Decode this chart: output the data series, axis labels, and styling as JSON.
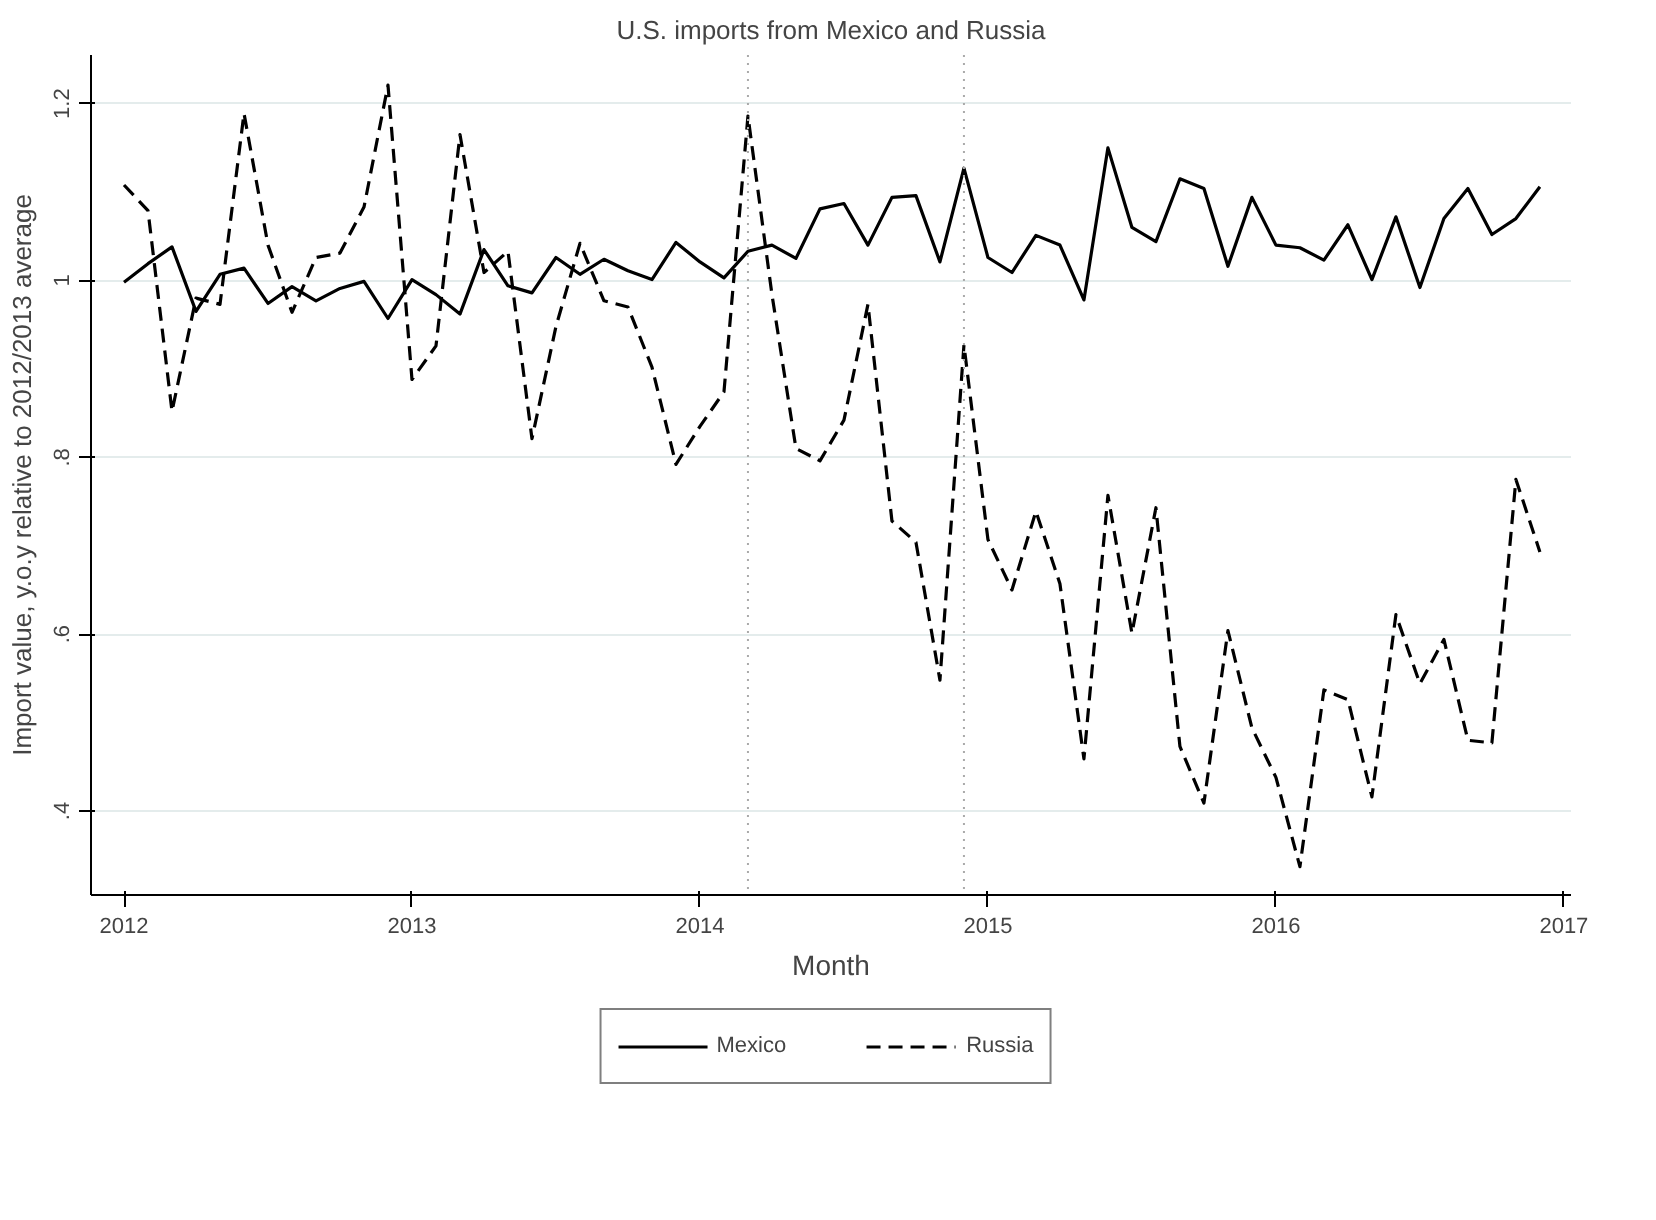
{
  "chart_data": {
    "type": "line",
    "title": "U.S. imports from Mexico and Russia",
    "xlabel": "Month",
    "ylabel": "Import value, y.o.y relative to 2012/2013 average",
    "x": [
      "2012-01",
      "2012-02",
      "2012-03",
      "2012-04",
      "2012-05",
      "2012-06",
      "2012-07",
      "2012-08",
      "2012-09",
      "2012-10",
      "2012-11",
      "2012-12",
      "2013-01",
      "2013-02",
      "2013-03",
      "2013-04",
      "2013-05",
      "2013-06",
      "2013-07",
      "2013-08",
      "2013-09",
      "2013-10",
      "2013-11",
      "2013-12",
      "2014-01",
      "2014-02",
      "2014-03",
      "2014-04",
      "2014-05",
      "2014-06",
      "2014-07",
      "2014-08",
      "2014-09",
      "2014-10",
      "2014-11",
      "2014-12",
      "2015-01",
      "2015-02",
      "2015-03",
      "2015-04",
      "2015-05",
      "2015-06",
      "2015-07",
      "2015-08",
      "2015-09",
      "2015-10",
      "2015-11",
      "2015-12",
      "2016-01",
      "2016-02",
      "2016-03",
      "2016-04",
      "2016-05",
      "2016-06",
      "2016-07",
      "2016-08",
      "2016-09",
      "2016-10",
      "2016-11",
      "2016-12"
    ],
    "series": [
      {
        "name": "Mexico",
        "color": "#000000",
        "line_style": "solid",
        "values": [
          0.998,
          1.019,
          1.038,
          0.965,
          1.007,
          1.014,
          0.974,
          0.993,
          0.977,
          0.991,
          0.999,
          0.957,
          1.001,
          0.984,
          0.962,
          1.035,
          0.994,
          0.986,
          1.026,
          1.007,
          1.024,
          1.011,
          1.001,
          1.043,
          1.021,
          1.003,
          1.033,
          1.04,
          1.025,
          1.081,
          1.087,
          1.04,
          1.094,
          1.096,
          1.021,
          1.127,
          1.026,
          1.009,
          1.051,
          1.04,
          0.978,
          1.15,
          1.06,
          1.044,
          1.115,
          1.104,
          1.016,
          1.094,
          1.04,
          1.037,
          1.023,
          1.063,
          1.001,
          1.072,
          0.992,
          1.07,
          1.104,
          1.052,
          1.07,
          1.106
        ]
      },
      {
        "name": "Russia",
        "color": "#000000",
        "line_style": "dashed",
        "values": [
          1.108,
          1.079,
          0.852,
          0.98,
          0.973,
          1.189,
          1.04,
          0.964,
          1.026,
          1.031,
          1.083,
          1.221,
          0.888,
          0.926,
          1.165,
          1.009,
          1.033,
          0.821,
          0.948,
          1.042,
          0.977,
          0.97,
          0.902,
          0.792,
          0.835,
          0.874,
          1.186,
          0.984,
          0.81,
          0.796,
          0.842,
          0.973,
          0.728,
          0.704,
          0.548,
          0.927,
          0.707,
          0.65,
          0.739,
          0.657,
          0.459,
          0.757,
          0.601,
          0.743,
          0.473,
          0.409,
          0.604,
          0.494,
          0.438,
          0.337,
          0.537,
          0.526,
          0.416,
          0.622,
          0.544,
          0.594,
          0.48,
          0.477,
          0.775,
          0.693
        ]
      }
    ],
    "xlim": [
      "2011-11-20",
      "2017-01-10"
    ],
    "xticks": [
      {
        "value": "2012",
        "label": "2012"
      },
      {
        "value": "2013",
        "label": "2013"
      },
      {
        "value": "2014",
        "label": "2014"
      },
      {
        "value": "2015",
        "label": "2015"
      },
      {
        "value": "2016",
        "label": "2016"
      },
      {
        "value": "2017",
        "label": "2017"
      }
    ],
    "ylim": [
      0.305,
      1.255
    ],
    "yticks": [
      {
        "value": 0.4,
        "label": ".4"
      },
      {
        "value": 0.6,
        "label": ".6"
      },
      {
        "value": 0.8,
        "label": ".8"
      },
      1,
      1.2
    ],
    "ref_lines": [
      {
        "axis": "x",
        "value": "2014-03",
        "color": "#aaaaaa",
        "line_style": "dotted"
      },
      {
        "axis": "x",
        "value": "2014-12",
        "color": "#aaaaaa",
        "line_style": "dotted"
      }
    ],
    "grid": "y",
    "legend": "bottom",
    "marker": "none"
  }
}
